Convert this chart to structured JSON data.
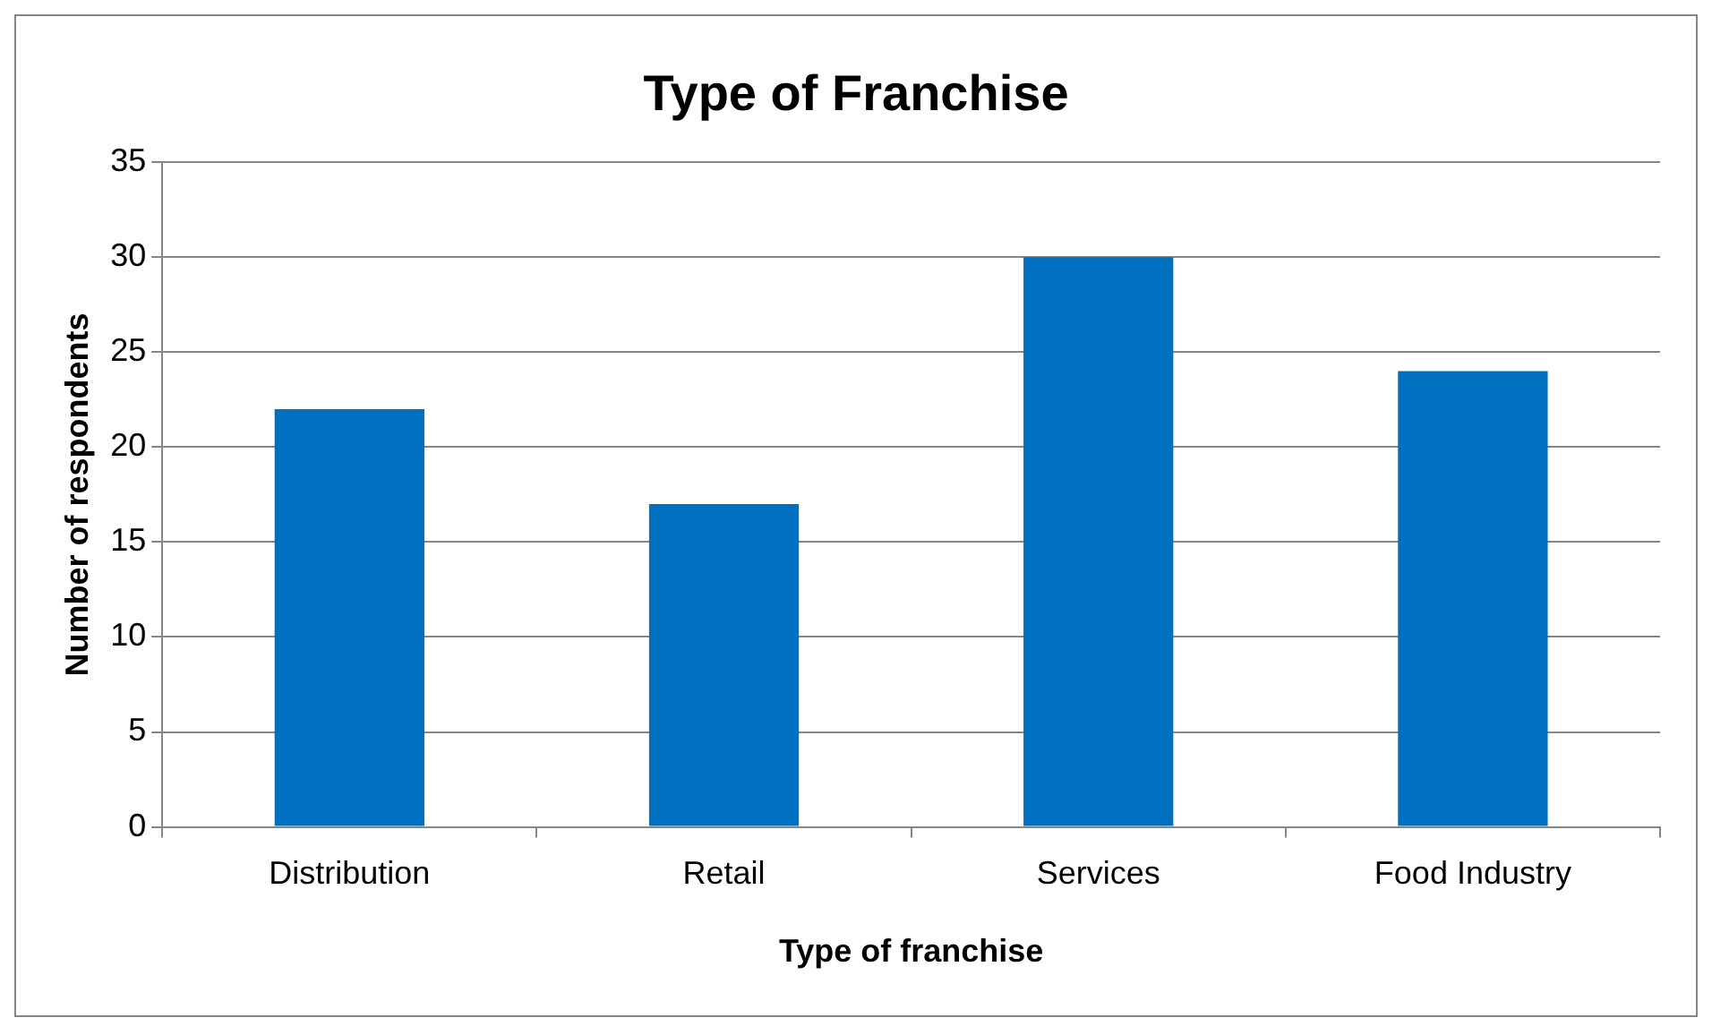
{
  "chart_data": {
    "type": "bar",
    "title": "Type of Franchise",
    "xlabel": "Type of franchise",
    "ylabel": "Number of respondents",
    "categories": [
      "Distribution",
      "Retail",
      "Services",
      "Food Industry"
    ],
    "values": [
      22,
      17,
      30,
      24
    ],
    "color": "#0070c0",
    "ylim": [
      0,
      35
    ],
    "yticks": [
      0,
      5,
      10,
      15,
      20,
      25,
      30,
      35
    ],
    "grid": "y",
    "legend": false
  }
}
